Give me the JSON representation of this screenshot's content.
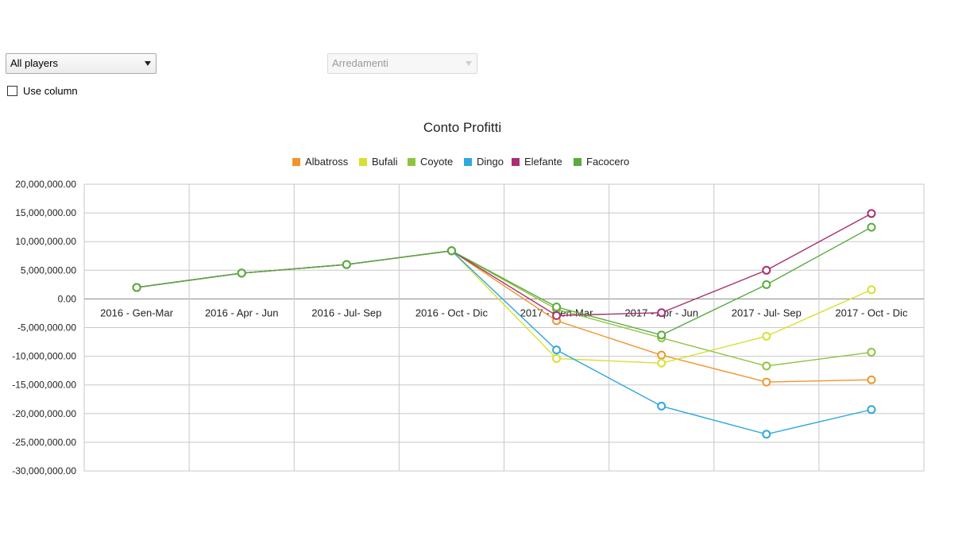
{
  "controls": {
    "player_select": "All players",
    "category_select": "Arredamenti",
    "use_column_label": "Use column"
  },
  "chart_data": {
    "type": "line",
    "title": "Conto Profitti",
    "legend_position": "top-center",
    "grid": true,
    "categories": [
      "2016 - Gen-Mar",
      "2016 - Apr - Jun",
      "2016 - Jul- Sep",
      "2016 - Oct - Dic",
      "2017 - Gen-Mar",
      "2017 - Apr - Jun",
      "2017 - Jul- Sep",
      "2017 - Oct - Dic"
    ],
    "ylim": [
      -30000000,
      20000000
    ],
    "yticks": [
      20000000,
      15000000,
      10000000,
      5000000,
      0,
      -5000000,
      -10000000,
      -15000000,
      -20000000,
      -25000000,
      -30000000
    ],
    "ytick_labels": [
      "20,000,000.00",
      "15,000,000.00",
      "10,000,000.00",
      "5,000,000.00",
      "0.00",
      "-5,000,000.00",
      "-10,000,000.00",
      "-15,000,000.00",
      "-20,000,000.00",
      "-25,000,000.00",
      "-30,000,000.00"
    ],
    "series": [
      {
        "name": "Albatross",
        "color": "#f0952d",
        "values": [
          2000000,
          4500000,
          6000000,
          8400000,
          -3800000,
          -9800000,
          -14500000,
          -14100000
        ]
      },
      {
        "name": "Bufali",
        "color": "#d9df2f",
        "values": [
          2000000,
          4500000,
          6000000,
          8400000,
          -10400000,
          -11200000,
          -6500000,
          1600000
        ]
      },
      {
        "name": "Coyote",
        "color": "#8fc33f",
        "values": [
          2000000,
          4500000,
          6000000,
          8400000,
          -1800000,
          -6800000,
          -11700000,
          -9300000
        ]
      },
      {
        "name": "Dingo",
        "color": "#2ea8df",
        "values": [
          2000000,
          4500000,
          6000000,
          8400000,
          -8900000,
          -18700000,
          -23600000,
          -19300000
        ]
      },
      {
        "name": "Elefante",
        "color": "#a8306e",
        "values": [
          2000000,
          4500000,
          6000000,
          8400000,
          -2900000,
          -2400000,
          5000000,
          14900000
        ]
      },
      {
        "name": "Facocero",
        "color": "#5aab3e",
        "values": [
          2000000,
          4500000,
          6000000,
          8400000,
          -1400000,
          -6300000,
          2500000,
          12500000
        ]
      }
    ]
  }
}
